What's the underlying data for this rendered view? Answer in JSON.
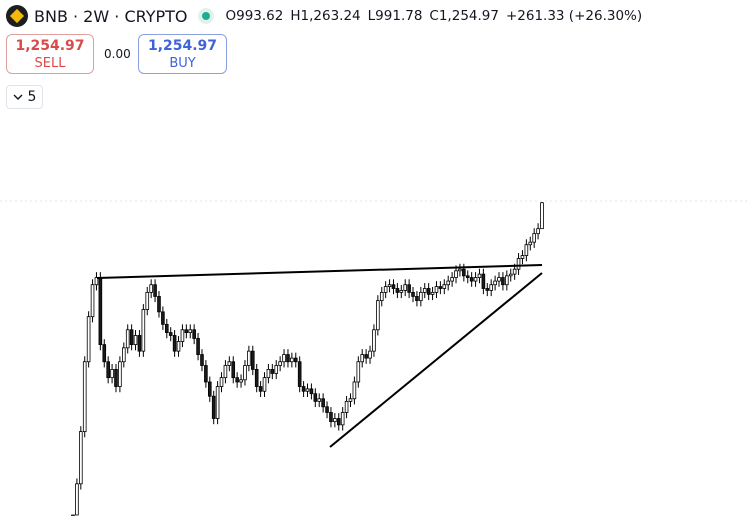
{
  "header": {
    "symbol_title": "BNB · 2W · CRYPTO",
    "status": "market-open",
    "open": "O993.62",
    "high": "H1,263.24",
    "low": "L991.78",
    "close": "C1,254.97",
    "change": "+261.33 (+26.30%)",
    "logo_icon": "bnb-logo-icon"
  },
  "trade": {
    "sell_price": "1,254.97",
    "sell_label": "SELL",
    "spread": "0.00",
    "buy_price": "1,254.97",
    "buy_label": "BUY"
  },
  "indicators": {
    "count": "5",
    "toggle_icon": "chevron-down-icon"
  },
  "colors": {
    "up_body": "#ffffff",
    "down_body": "#1a1a1a",
    "candle_outline": "#000000",
    "trendline": "#000000",
    "status_dot": "#22ab94"
  },
  "chart_data": {
    "type": "candlestick",
    "scale": "log",
    "interval": "2W",
    "last_candle": {
      "open": 993.62,
      "high": 1263.24,
      "low": 991.78,
      "close": 1254.97
    },
    "closes": [
      70,
      100,
      160,
      300,
      450,
      600,
      640,
      350,
      300,
      260,
      280,
      240,
      300,
      340,
      400,
      350,
      380,
      330,
      480,
      560,
      600,
      540,
      470,
      420,
      390,
      380,
      330,
      360,
      400,
      390,
      400,
      370,
      320,
      290,
      250,
      220,
      180,
      240,
      260,
      290,
      300,
      260,
      250,
      255,
      290,
      330,
      280,
      240,
      230,
      260,
      280,
      270,
      290,
      300,
      320,
      300,
      310,
      300,
      240,
      230,
      235,
      225,
      210,
      215,
      200,
      190,
      175,
      180,
      170,
      190,
      210,
      215,
      250,
      300,
      320,
      310,
      330,
      400,
      520,
      560,
      590,
      600,
      580,
      560,
      570,
      600,
      560,
      540,
      520,
      560,
      580,
      550,
      560,
      590,
      580,
      600,
      620,
      640,
      680,
      690,
      650,
      640,
      620,
      640,
      660,
      580,
      570,
      600,
      620,
      640,
      600,
      650,
      660,
      690,
      760,
      780,
      860,
      880,
      950,
      993.62,
      1254.97
    ],
    "drawings": [
      "resistance-trendline",
      "ascending-support-trendline"
    ]
  }
}
